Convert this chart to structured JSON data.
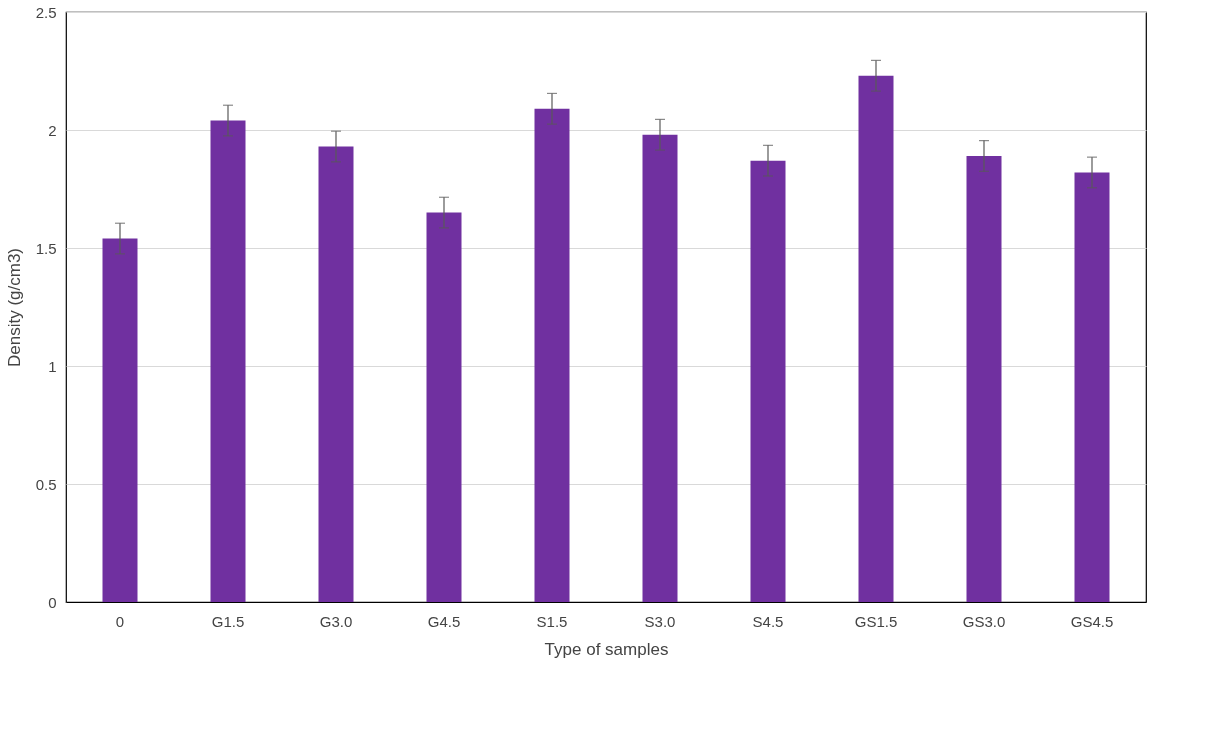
{
  "chart_data": {
    "type": "bar",
    "xlabel": "Type of samples",
    "ylabel": "Density (g/cm3)",
    "categories": [
      "0",
      "G1.5",
      "G3.0",
      "G4.5",
      "S1.5",
      "S3.0",
      "S4.5",
      "GS1.5",
      "GS3.0",
      "GS4.5"
    ],
    "values": [
      1.54,
      2.04,
      1.93,
      1.65,
      2.09,
      1.98,
      1.87,
      2.23,
      1.89,
      1.82
    ],
    "errors": [
      0.065,
      0.065,
      0.065,
      0.065,
      0.065,
      0.065,
      0.065,
      0.065,
      0.065,
      0.065
    ],
    "color": "#7030a0",
    "ylim": [
      0,
      2.5
    ],
    "yticks": [
      0,
      0.5,
      1,
      1.5,
      2,
      2.5
    ],
    "grid": "y"
  }
}
